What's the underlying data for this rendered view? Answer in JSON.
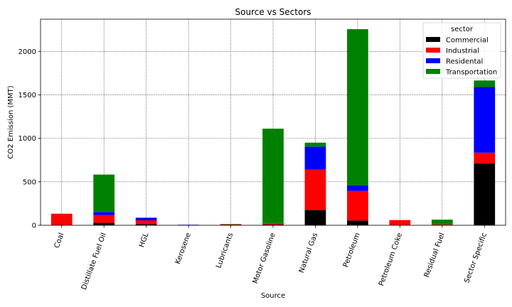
{
  "chart_data": {
    "type": "bar",
    "stacked": true,
    "title": "Source vs Sectors",
    "xlabel": "Source",
    "ylabel": "CO2 Emission (MMT)",
    "ylim": [
      0,
      2370
    ],
    "yticks": [
      0,
      500,
      1000,
      1500,
      2000
    ],
    "grid": true,
    "legend_title": "sector",
    "legend_position": "top-right",
    "categories": [
      "Coal",
      "Distillate Fuel Oil",
      "HGL",
      "Kerosene",
      "Lubricants",
      "Motor Gasoline",
      "Natural Gas",
      "Petroleum",
      "Petroleum Coke",
      "Residual Fuel",
      "Sector Specific"
    ],
    "series": [
      {
        "name": "Commercial",
        "color": "#000000",
        "values": [
          3,
          28,
          12,
          0,
          0,
          8,
          175,
          55,
          0,
          2,
          710
        ]
      },
      {
        "name": "Industrial",
        "color": "#ff0000",
        "values": [
          130,
          90,
          45,
          1,
          10,
          18,
          465,
          340,
          60,
          8,
          125
        ]
      },
      {
        "name": "Residental",
        "color": "#0000ff",
        "values": [
          0,
          35,
          30,
          5,
          0,
          0,
          265,
          65,
          0,
          0,
          755
        ]
      },
      {
        "name": "Transportation",
        "color": "#008000",
        "values": [
          0,
          430,
          0,
          0,
          5,
          1085,
          45,
          1795,
          0,
          55,
          75
        ]
      }
    ]
  }
}
